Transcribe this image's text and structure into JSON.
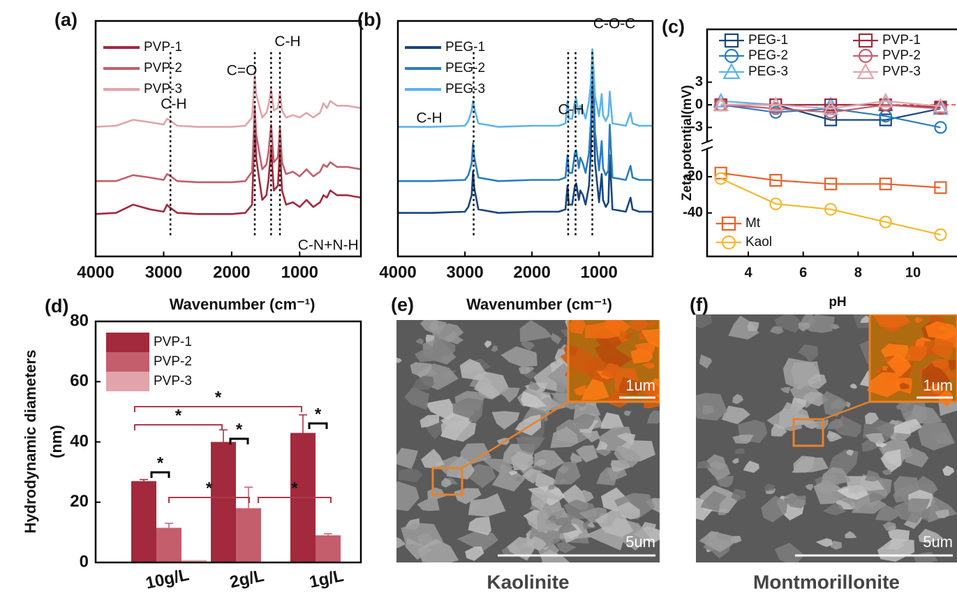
{
  "chart_data": [
    {
      "type": "spectrum",
      "panel_label": "(a)",
      "xlabel": "Wavenumber (cm⁻¹)",
      "xlim": [
        4000,
        100
      ],
      "xticks": [
        4000,
        3000,
        2000,
        1000
      ],
      "ylim": [
        0,
        10
      ],
      "x": [
        4000,
        3700,
        3450,
        3200,
        3000,
        2950,
        2920,
        2870,
        2800,
        2500,
        2200,
        2000,
        1800,
        1700,
        1680,
        1660,
        1640,
        1550,
        1490,
        1460,
        1420,
        1380,
        1320,
        1290,
        1260,
        1200,
        1100,
        1000,
        900,
        800,
        700,
        650,
        600,
        550,
        500,
        450,
        400,
        300,
        100
      ],
      "series": [
        {
          "name": "PVP-1",
          "color": "#a3293d",
          "values": [
            1.8,
            1.85,
            2.2,
            2.0,
            1.9,
            2.2,
            2.1,
            2.0,
            1.85,
            1.8,
            1.8,
            1.8,
            1.85,
            2.2,
            4.0,
            5.8,
            4.2,
            2.4,
            2.6,
            3.2,
            4.6,
            2.8,
            3.0,
            4.6,
            2.8,
            2.2,
            2.3,
            2.1,
            2.4,
            2.1,
            2.3,
            2.6,
            2.5,
            2.8,
            2.7,
            2.6,
            2.6,
            2.6,
            2.5
          ]
        },
        {
          "name": "PVP-2",
          "color": "#c45e6c",
          "values": [
            3.2,
            3.2,
            3.45,
            3.35,
            3.25,
            3.5,
            3.45,
            3.35,
            3.2,
            3.15,
            3.15,
            3.15,
            3.2,
            3.6,
            5.0,
            6.4,
            5.2,
            3.7,
            3.9,
            4.4,
            5.6,
            4.0,
            4.2,
            5.5,
            4.0,
            3.5,
            3.6,
            3.4,
            3.7,
            3.4,
            3.6,
            3.9,
            3.8,
            4.0,
            3.9,
            3.8,
            3.8,
            3.8,
            3.7
          ]
        },
        {
          "name": "PVP-3",
          "color": "#e2a4ab",
          "values": [
            5.5,
            5.55,
            5.8,
            5.7,
            5.6,
            5.85,
            5.8,
            5.7,
            5.55,
            5.5,
            5.5,
            5.5,
            5.55,
            5.9,
            6.8,
            7.7,
            6.9,
            5.9,
            6.1,
            6.4,
            7.1,
            6.2,
            6.3,
            7.0,
            6.2,
            5.9,
            6.0,
            5.9,
            6.1,
            5.9,
            6.1,
            6.5,
            6.3,
            6.6,
            6.5,
            6.4,
            6.4,
            6.4,
            6.3
          ]
        }
      ],
      "peak_marks": [
        2900,
        1660,
        1420,
        1290
      ],
      "annotations": [
        {
          "text": "C-H",
          "x": 2852,
          "y": 6.44
        },
        {
          "text": "C=O",
          "x": 1850,
          "y": 7.86
        },
        {
          "text": "C-H",
          "x": 1177,
          "y": 9.1
        },
        {
          "text": "C-N+N-H",
          "x": 580,
          "y": 0.45
        }
      ]
    },
    {
      "type": "spectrum",
      "panel_label": "(b)",
      "xlabel": "Wavenumber (cm⁻¹)",
      "xlim": [
        4000,
        200
      ],
      "xticks": [
        4000,
        3000,
        2000,
        1000
      ],
      "ylim": [
        0,
        10
      ],
      "x": [
        4000,
        3500,
        3000,
        2950,
        2900,
        2880,
        2860,
        2800,
        2500,
        2000,
        1600,
        1500,
        1470,
        1450,
        1400,
        1360,
        1340,
        1300,
        1280,
        1240,
        1200,
        1150,
        1120,
        1100,
        1080,
        1060,
        1000,
        960,
        940,
        900,
        860,
        840,
        800,
        600,
        530,
        500,
        400,
        200
      ],
      "series": [
        {
          "name": "PEG-1",
          "color": "#17467f",
          "values": [
            1.85,
            1.85,
            1.9,
            2.1,
            2.6,
            3.6,
            2.9,
            2.0,
            1.85,
            1.9,
            1.9,
            2.0,
            3.0,
            2.2,
            2.2,
            3.0,
            3.1,
            2.4,
            2.8,
            2.6,
            2.2,
            3.0,
            4.5,
            8.1,
            6.5,
            4.0,
            2.3,
            3.5,
            2.4,
            2.1,
            2.3,
            4.3,
            2.0,
            1.9,
            2.5,
            2.0,
            1.9,
            1.9
          ]
        },
        {
          "name": "PEG-2",
          "color": "#2a7dc0",
          "values": [
            3.2,
            3.2,
            3.25,
            3.45,
            3.95,
            4.8,
            4.2,
            3.35,
            3.2,
            3.25,
            3.25,
            3.35,
            4.3,
            3.55,
            3.55,
            4.4,
            4.5,
            3.75,
            4.2,
            3.95,
            3.55,
            4.4,
            5.8,
            8.5,
            7.2,
            5.3,
            3.65,
            4.9,
            3.75,
            3.45,
            3.65,
            5.6,
            3.35,
            3.25,
            3.85,
            3.35,
            3.25,
            3.25
          ]
        },
        {
          "name": "PEG-3",
          "color": "#5db3ec",
          "values": [
            5.5,
            5.5,
            5.55,
            5.75,
            6.2,
            6.6,
            6.3,
            5.65,
            5.5,
            5.55,
            5.55,
            5.65,
            6.6,
            5.85,
            5.85,
            6.6,
            6.7,
            6.05,
            6.4,
            6.2,
            5.85,
            6.6,
            7.4,
            8.8,
            7.9,
            6.8,
            5.95,
            6.9,
            6.0,
            5.75,
            6.0,
            7.0,
            5.65,
            5.55,
            6.1,
            5.65,
            5.55,
            5.55
          ]
        }
      ],
      "peak_marks": [
        2870,
        1460,
        1350,
        1100
      ],
      "annotations": [
        {
          "text": "C-H",
          "x": 3531,
          "y": 5.85
        },
        {
          "text": "C-H",
          "x": 1417,
          "y": 6.2
        },
        {
          "text": "C-O-C",
          "x": 771,
          "y": 9.85
        }
      ]
    },
    {
      "type": "zeta",
      "panel_label": "(c)",
      "xlabel": "pH",
      "ylabel": "Zeta potential(mV)",
      "xlim": [
        2.5,
        11.6
      ],
      "xticks": [
        4,
        6,
        8,
        10
      ],
      "ylim": [
        -64,
        10
      ],
      "ybreak": -5,
      "yticks": [
        3,
        0,
        -3,
        -20,
        -40
      ],
      "x": [
        3,
        5,
        7,
        9,
        11
      ],
      "series": [
        {
          "name": "PEG-1",
          "color": "#17467f",
          "marker": "square",
          "values": [
            0,
            0,
            -2,
            -2,
            -0.5
          ]
        },
        {
          "name": "PEG-2",
          "color": "#2a7dc0",
          "marker": "circle",
          "values": [
            0,
            -1,
            -0.5,
            -1.5,
            -3
          ]
        },
        {
          "name": "PEG-3",
          "color": "#5db3ec",
          "marker": "triangle",
          "values": [
            0.5,
            0,
            0,
            0,
            -0.5
          ]
        },
        {
          "name": "PVP-1",
          "color": "#a3293d",
          "marker": "square",
          "values": [
            0,
            0,
            0,
            0,
            -0.3
          ]
        },
        {
          "name": "PVP-2",
          "color": "#c45e6c",
          "marker": "circle",
          "values": [
            0,
            -0.5,
            -1,
            0,
            -0.5
          ]
        },
        {
          "name": "PVP-3",
          "color": "#e2a4ab",
          "marker": "triangle",
          "values": [
            0,
            0,
            -0.5,
            0.5,
            -0.2
          ]
        },
        {
          "name": "Mt",
          "color": "#e8622a",
          "marker": "square",
          "values": [
            -18,
            -22,
            -24,
            -24,
            -26
          ]
        },
        {
          "name": "Kaol",
          "color": "#f5b82e",
          "marker": "circle",
          "values": [
            -21,
            -35,
            -38,
            -45,
            -52
          ]
        }
      ]
    },
    {
      "type": "grouped-bar",
      "panel_label": "(d)",
      "ylabel": [
        "Hydrodynamic diameters",
        "(nm)"
      ],
      "categories": [
        "10g/L",
        "2g/L",
        "1g/L"
      ],
      "ylim": [
        0,
        80
      ],
      "yticks": [
        0,
        20,
        40,
        60,
        80
      ],
      "series": [
        {
          "name": "PVP-1",
          "color": "#a3293d",
          "values": [
            27,
            40,
            43
          ],
          "errors": [
            0.5,
            4,
            6
          ]
        },
        {
          "name": "PVP-2",
          "color": "#c45e6c",
          "values": [
            11.5,
            18,
            9
          ],
          "errors": [
            1.5,
            7,
            0.5
          ]
        },
        {
          "name": "PVP-3",
          "color": "#e2a4ab",
          "values": [
            0.8,
            0,
            0
          ],
          "errors": [
            0,
            0,
            0
          ]
        }
      ],
      "significance_labels": [
        "*",
        "*",
        "*",
        "*",
        "*",
        "*",
        "*"
      ]
    }
  ],
  "images": [
    {
      "panel_label": "(e)",
      "caption": "Kaolinite",
      "inset_scale": "1um",
      "scale": "5um"
    },
    {
      "panel_label": "(f)",
      "caption": "Montmorillonite",
      "inset_scale": "1um",
      "scale": "5um"
    }
  ]
}
